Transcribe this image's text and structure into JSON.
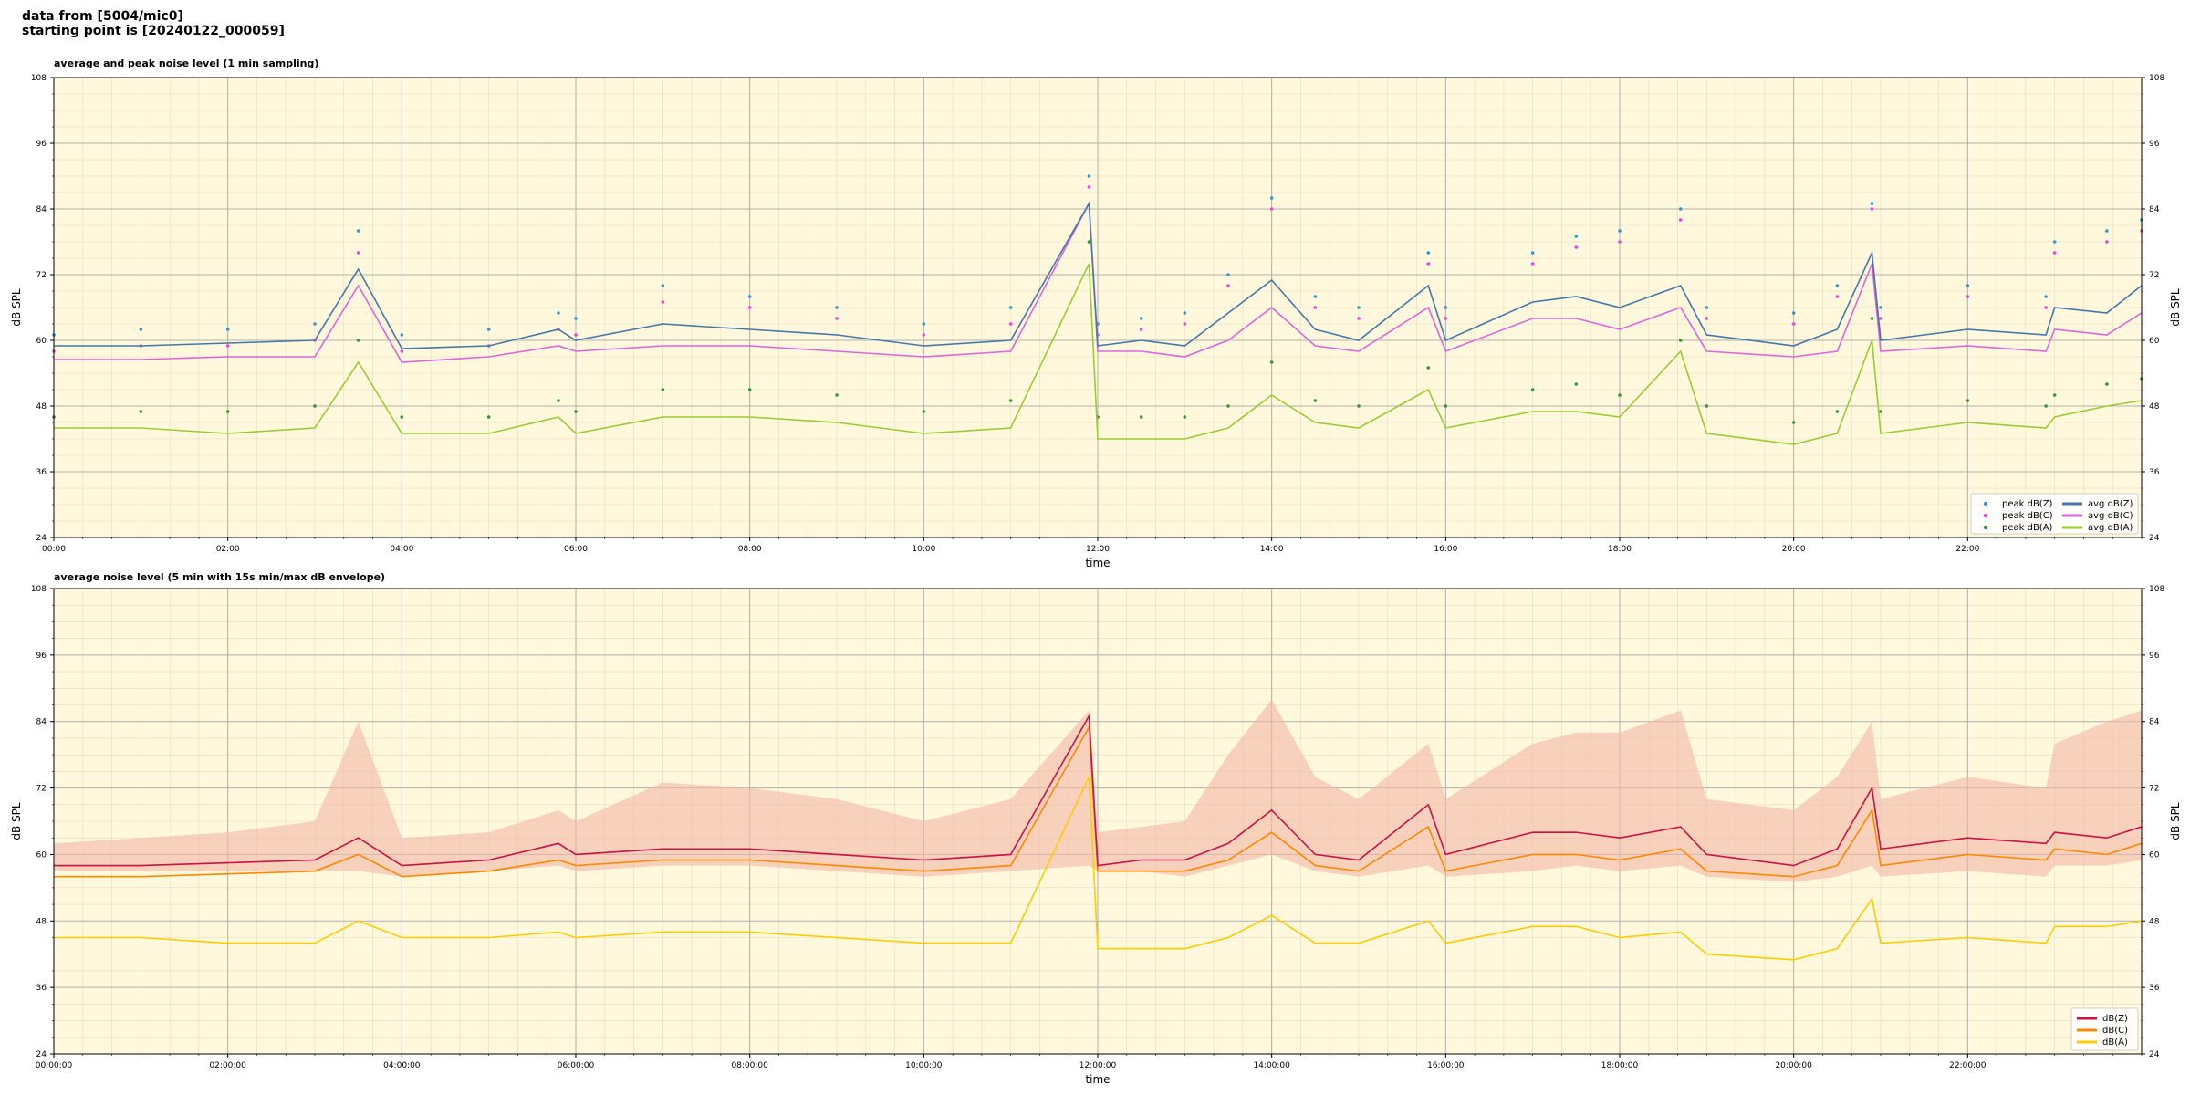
{
  "header": {
    "line1": "data from [5004/mic0]",
    "line2": "starting point is [20240122_000059]"
  },
  "colors": {
    "background": "#fff8dc",
    "peakZ": "#3399cc",
    "peakC": "#ee44dd",
    "peakA": "#339933",
    "avgZ": "#4477aa",
    "avgC": "#dd66dd",
    "avgA": "#99cc33",
    "dbZ": "#cc1144",
    "dbC": "#ff8800",
    "dbA": "#ffcc00",
    "envelope": "#f4b8a8"
  },
  "chart_data": [
    {
      "type": "line",
      "title": "average and peak noise level (1 min sampling)",
      "xlabel": "time",
      "ylabel": "dB SPL",
      "ylim": [
        24,
        108
      ],
      "yticks": [
        "24",
        "36",
        "48",
        "60",
        "72",
        "84",
        "96",
        "108"
      ],
      "xticks": [
        "00:00",
        "02:00",
        "04:00",
        "06:00",
        "08:00",
        "10:00",
        "12:00",
        "14:00",
        "16:00",
        "18:00",
        "20:00",
        "22:00"
      ],
      "x_hours": [
        0,
        1,
        2,
        3,
        3.5,
        4,
        5,
        5.8,
        6,
        7,
        8,
        9,
        10,
        11,
        11.9,
        12,
        12.5,
        13,
        13.5,
        14,
        14.5,
        15,
        15.8,
        16,
        17,
        17.5,
        18,
        18.7,
        19,
        20,
        20.5,
        20.9,
        21,
        22,
        22.9,
        23,
        23.6,
        24
      ],
      "grid": true,
      "legend": "bottom-right",
      "series": [
        {
          "name": "avg dB(Z)",
          "values": [
            59,
            59,
            59.5,
            60,
            73,
            58.5,
            59,
            62,
            60,
            63,
            62,
            61,
            59,
            60,
            85,
            59,
            60,
            59,
            65,
            71,
            62,
            60,
            70,
            60,
            67,
            68,
            66,
            70,
            61,
            59,
            62,
            76,
            60,
            62,
            61,
            66,
            65,
            70
          ]
        },
        {
          "name": "avg dB(C)",
          "values": [
            56.5,
            56.5,
            57,
            57,
            70,
            56,
            57,
            59,
            58,
            59,
            59,
            58,
            57,
            58,
            85,
            58,
            58,
            57,
            60,
            66,
            59,
            58,
            66,
            58,
            64,
            64,
            62,
            66,
            58,
            57,
            58,
            74,
            58,
            59,
            58,
            62,
            61,
            65
          ]
        },
        {
          "name": "avg dB(A)",
          "values": [
            44,
            44,
            43,
            44,
            56,
            43,
            43,
            46,
            43,
            46,
            46,
            45,
            43,
            44,
            74,
            42,
            42,
            42,
            44,
            50,
            45,
            44,
            51,
            44,
            47,
            47,
            46,
            58,
            43,
            41,
            43,
            60,
            43,
            45,
            44,
            46,
            48,
            49
          ]
        },
        {
          "name": "peak dB(Z)",
          "values": [
            61,
            62,
            62,
            63,
            80,
            61,
            62,
            65,
            64,
            70,
            68,
            66,
            63,
            66,
            90,
            63,
            64,
            65,
            72,
            86,
            68,
            66,
            76,
            66,
            76,
            79,
            80,
            84,
            66,
            65,
            70,
            85,
            66,
            70,
            68,
            78,
            80,
            82
          ]
        },
        {
          "name": "peak dB(C)",
          "values": [
            58,
            59,
            59,
            60,
            76,
            58,
            59,
            62,
            61,
            67,
            66,
            64,
            61,
            63,
            88,
            61,
            62,
            63,
            70,
            84,
            66,
            64,
            74,
            64,
            74,
            77,
            78,
            82,
            64,
            63,
            68,
            84,
            64,
            68,
            66,
            76,
            78,
            80
          ]
        },
        {
          "name": "peak dB(A)",
          "values": [
            46,
            47,
            47,
            48,
            60,
            46,
            46,
            49,
            47,
            51,
            51,
            50,
            47,
            49,
            78,
            46,
            46,
            46,
            48,
            56,
            49,
            48,
            55,
            48,
            51,
            52,
            50,
            60,
            48,
            45,
            47,
            64,
            47,
            49,
            48,
            50,
            52,
            53
          ]
        }
      ]
    },
    {
      "type": "line",
      "title": "average noise level (5 min with 15s min/max dB envelope)",
      "xlabel": "time",
      "ylabel": "dB SPL",
      "ylim": [
        24,
        108
      ],
      "yticks": [
        "24",
        "36",
        "48",
        "60",
        "72",
        "84",
        "96",
        "108"
      ],
      "xticks": [
        "00:00:00",
        "02:00:00",
        "04:00:00",
        "06:00:00",
        "08:00:00",
        "10:00:00",
        "12:00:00",
        "14:00:00",
        "16:00:00",
        "18:00:00",
        "20:00:00",
        "22:00:00"
      ],
      "x_hours": [
        0,
        1,
        2,
        3,
        3.5,
        4,
        5,
        5.8,
        6,
        7,
        8,
        9,
        10,
        11,
        11.9,
        12,
        12.5,
        13,
        13.5,
        14,
        14.5,
        15,
        15.8,
        16,
        17,
        17.5,
        18,
        18.7,
        19,
        20,
        20.5,
        20.9,
        21,
        22,
        22.9,
        23,
        23.6,
        24
      ],
      "grid": true,
      "legend": "bottom-right",
      "envelope_max": [
        62,
        63,
        64,
        66,
        84,
        63,
        64,
        68,
        66,
        73,
        72,
        70,
        66,
        70,
        86,
        64,
        65,
        66,
        78,
        88,
        74,
        70,
        80,
        70,
        80,
        82,
        82,
        86,
        70,
        68,
        74,
        84,
        70,
        74,
        72,
        80,
        84,
        86
      ],
      "envelope_min": [
        57,
        57,
        57,
        57,
        57,
        56,
        57,
        58,
        57,
        58,
        58,
        57,
        56,
        57,
        58,
        57,
        57,
        56,
        58,
        60,
        57,
        56,
        58,
        56,
        57,
        58,
        57,
        58,
        56,
        55,
        56,
        58,
        56,
        57,
        56,
        58,
        58,
        59
      ],
      "series": [
        {
          "name": "dB(Z)",
          "values": [
            58,
            58,
            58.5,
            59,
            63,
            58,
            59,
            62,
            60,
            61,
            61,
            60,
            59,
            60,
            85,
            58,
            59,
            59,
            62,
            68,
            60,
            59,
            69,
            60,
            64,
            64,
            63,
            65,
            60,
            58,
            61,
            72,
            61,
            63,
            62,
            64,
            63,
            65
          ]
        },
        {
          "name": "dB(C)",
          "values": [
            56,
            56,
            56.5,
            57,
            60,
            56,
            57,
            59,
            58,
            59,
            59,
            58,
            57,
            58,
            83,
            57,
            57,
            57,
            59,
            64,
            58,
            57,
            65,
            57,
            60,
            60,
            59,
            61,
            57,
            56,
            58,
            68,
            58,
            60,
            59,
            61,
            60,
            62
          ]
        },
        {
          "name": "dB(A)",
          "values": [
            45,
            45,
            44,
            44,
            48,
            45,
            45,
            46,
            45,
            46,
            46,
            45,
            44,
            44,
            74,
            43,
            43,
            43,
            45,
            49,
            44,
            44,
            48,
            44,
            47,
            47,
            45,
            46,
            42,
            41,
            43,
            52,
            44,
            45,
            44,
            47,
            47,
            48
          ]
        }
      ]
    }
  ]
}
